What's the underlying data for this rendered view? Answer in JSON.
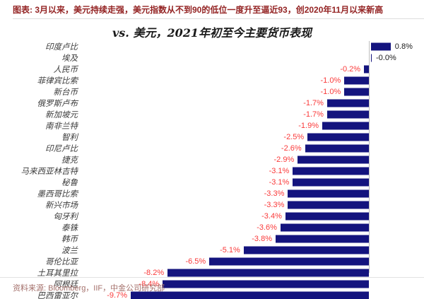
{
  "header": {
    "caption": "图表: 3月以来，美元持续走强，美元指数从不到90的低位一度升至逼近93，创2020年11月以来新高"
  },
  "chart_data": {
    "type": "bar",
    "orientation": "horizontal",
    "title": "vs. 美元，2021年初至今主要货币表现",
    "unit": "%",
    "categories": [
      "印度卢比",
      "埃及",
      "人民币",
      "菲律宾比索",
      "新台币",
      "俄罗斯卢布",
      "新加坡元",
      "南非兰特",
      "智利",
      "印尼卢比",
      "捷克",
      "马来西亚林吉特",
      "秘鲁",
      "墨西哥比索",
      "新兴市场",
      "匈牙利",
      "泰铢",
      "韩币",
      "波兰",
      "哥伦比亚",
      "土耳其里拉",
      "阿根廷",
      "巴西雷亚尔"
    ],
    "values": [
      0.8,
      -0.0,
      -0.2,
      -1.0,
      -1.0,
      -1.7,
      -1.7,
      -1.9,
      -2.5,
      -2.6,
      -2.9,
      -3.1,
      -3.1,
      -3.3,
      -3.3,
      -3.4,
      -3.6,
      -3.8,
      -5.1,
      -6.5,
      -8.2,
      -8.4,
      -9.7
    ],
    "labels": [
      "0.8%",
      "-0.0%",
      "-0.2%",
      "-1.0%",
      "-1.0%",
      "-1.7%",
      "-1.7%",
      "-1.9%",
      "-2.5%",
      "-2.6%",
      "-2.9%",
      "-3.1%",
      "-3.1%",
      "-3.3%",
      "-3.3%",
      "-3.4%",
      "-3.6%",
      "-3.8%",
      "-5.1%",
      "-6.5%",
      "-8.2%",
      "-8.4%",
      "-9.7%"
    ],
    "xlim": [
      -10.5,
      1.2
    ],
    "legend": "none",
    "grid": "off",
    "baseline": "zero axis near right side, losses extend left",
    "bar_color": "#14147e",
    "negative_label_color": "#fa3a3a",
    "positive_label_color": "#1a1a1a"
  },
  "footer": {
    "source": "资料来源: Bloomberg，IIF，中金公司研究部"
  }
}
